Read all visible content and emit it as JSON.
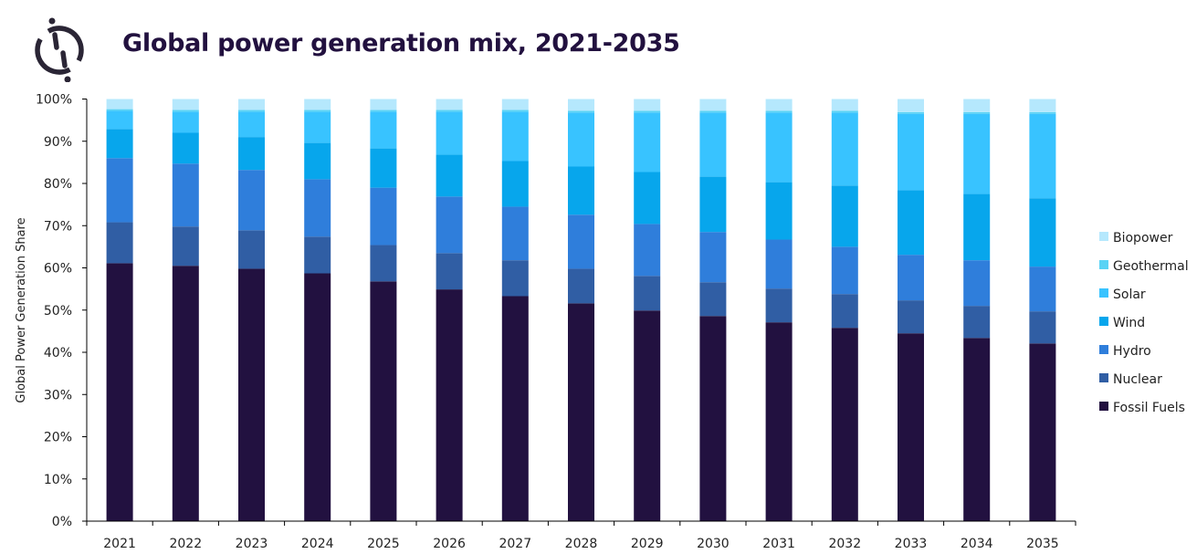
{
  "header": {
    "logo_icon": "brand-logo-icon",
    "title": "Global power generation mix, 2021-2035"
  },
  "chart_data": {
    "type": "bar",
    "stacked": true,
    "title": "Global power generation mix, 2021-2035",
    "xlabel": "",
    "ylabel": "Global Power Generation Share",
    "ylim": [
      0,
      100
    ],
    "y_ticks": [
      "0%",
      "10%",
      "20%",
      "30%",
      "40%",
      "50%",
      "60%",
      "70%",
      "80%",
      "90%",
      "100%"
    ],
    "grid": false,
    "legend_position": "right",
    "categories": [
      "2021",
      "2022",
      "2023",
      "2024",
      "2025",
      "2026",
      "2027",
      "2028",
      "2029",
      "2030",
      "2031",
      "2032",
      "2033",
      "2034",
      "2035"
    ],
    "series": [
      {
        "name": "Fossil Fuels",
        "color": "#221140",
        "values": [
          61.1,
          60.5,
          59.8,
          58.7,
          56.8,
          54.9,
          53.3,
          51.6,
          49.9,
          48.6,
          47.1,
          45.8,
          44.5,
          43.4,
          42.1
        ]
      },
      {
        "name": "Nuclear",
        "color": "#305ea4",
        "values": [
          9.7,
          9.3,
          9.1,
          8.7,
          8.6,
          8.6,
          8.5,
          8.2,
          8.2,
          8.0,
          8.0,
          8.0,
          7.8,
          7.6,
          7.6
        ]
      },
      {
        "name": "Hydro",
        "color": "#2f7edb",
        "values": [
          15.2,
          14.9,
          14.3,
          13.6,
          13.6,
          13.4,
          12.7,
          12.8,
          12.3,
          11.9,
          11.6,
          11.2,
          10.8,
          10.8,
          10.6
        ]
      },
      {
        "name": "Wind",
        "color": "#07a6ec",
        "values": [
          6.9,
          7.3,
          7.8,
          8.6,
          9.3,
          9.9,
          10.8,
          11.4,
          12.3,
          13.1,
          13.6,
          14.5,
          15.3,
          15.7,
          16.2
        ]
      },
      {
        "name": "Solar",
        "color": "#38c3ff",
        "values": [
          4.3,
          5.0,
          6.0,
          7.4,
          8.7,
          10.2,
          11.7,
          12.8,
          14.1,
          15.2,
          16.5,
          17.3,
          18.1,
          19.0,
          20.0
        ]
      },
      {
        "name": "Geothermal",
        "color": "#5ad3f5",
        "values": [
          0.4,
          0.4,
          0.4,
          0.4,
          0.4,
          0.4,
          0.4,
          0.4,
          0.4,
          0.4,
          0.4,
          0.4,
          0.4,
          0.4,
          0.4
        ]
      },
      {
        "name": "Biopower",
        "color": "#b5e8fd",
        "values": [
          2.4,
          2.6,
          2.6,
          2.6,
          2.6,
          2.6,
          2.6,
          2.8,
          2.8,
          2.8,
          2.8,
          2.8,
          3.1,
          3.1,
          3.1
        ]
      }
    ]
  }
}
